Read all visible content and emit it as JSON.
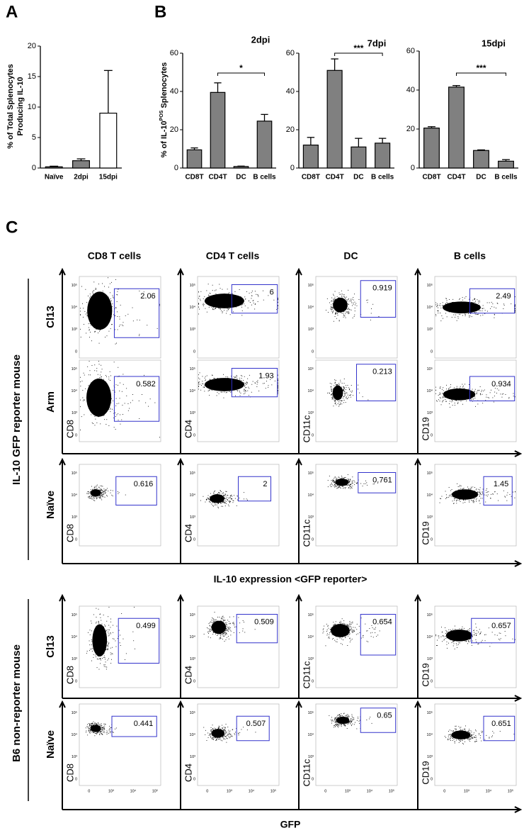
{
  "panels": {
    "a": "A",
    "b": "B",
    "c": "C"
  },
  "chart_data": [
    {
      "type": "bar",
      "ylabel": [
        "% of Total Splenocytes",
        "Producing IL-10"
      ],
      "categories": [
        "Naïve",
        "2dpi",
        "15dpi"
      ],
      "values": [
        0.2,
        1.2,
        9
      ],
      "errors": [
        0.1,
        0.3,
        7
      ],
      "colors": [
        "#808080",
        "#808080",
        "#ffffff"
      ],
      "ylim": [
        0,
        20
      ],
      "yticks": [
        0,
        5,
        10,
        15,
        20
      ]
    },
    {
      "type": "bar",
      "title": "2dpi",
      "ylabel": {
        "text": "% of IL-10",
        "sup": "POS",
        "rest": "Splenocytes"
      },
      "categories": [
        "CD8T",
        "CD4T",
        "DC",
        "B cells"
      ],
      "values": [
        9.5,
        39.5,
        0.8,
        24.5
      ],
      "errors": [
        1,
        5,
        0.2,
        3.5
      ],
      "color": "#808080",
      "ylim": [
        0,
        60
      ],
      "yticks": [
        0,
        20,
        40,
        60
      ],
      "annotation": "*"
    },
    {
      "type": "bar",
      "title": "7dpi",
      "categories": [
        "CD8T",
        "CD4T",
        "DC",
        "B cells"
      ],
      "values": [
        12,
        51,
        11,
        13
      ],
      "errors": [
        4,
        6,
        4.5,
        2.5
      ],
      "color": "#808080",
      "ylim": [
        0,
        60
      ],
      "yticks": [
        0,
        20,
        40,
        60
      ],
      "annotation": "***"
    },
    {
      "type": "bar",
      "title": "15dpi",
      "categories": [
        "CD8T",
        "CD4T",
        "DC",
        "B cells"
      ],
      "values": [
        20.5,
        41.5,
        9,
        3.5
      ],
      "errors": [
        0.7,
        0.8,
        0.3,
        0.8
      ],
      "color": "#808080",
      "ylim": [
        0,
        60
      ],
      "yticks": [
        0,
        20,
        40,
        60
      ],
      "annotation": "***"
    }
  ],
  "flow": {
    "columns": [
      "CD8 T cells",
      "CD4 T cells",
      "DC",
      "B cells"
    ],
    "markers": [
      "CD8",
      "CD4",
      "CD11c",
      "CD19"
    ],
    "ticks": [
      "0",
      "10³",
      "10⁴",
      "10⁵"
    ],
    "groups": [
      {
        "label": "IL-10 GFP reporter mouse",
        "xlabel": "IL-10 expression <GFP reporter>",
        "rows": [
          {
            "name": "Cl13",
            "gates": [
              2.06,
              6,
              0.919,
              2.49
            ]
          },
          {
            "name": "Arm",
            "gates": [
              0.582,
              1.93,
              0.213,
              0.934
            ]
          },
          {
            "name": "Naïve",
            "gates": [
              0.616,
              2,
              0.761,
              1.45
            ]
          }
        ]
      },
      {
        "label": "B6 non-reporter mouse",
        "xlabel": "GFP",
        "rows": [
          {
            "name": "Cl13",
            "gates": [
              0.499,
              0.509,
              0.654,
              0.657
            ]
          },
          {
            "name": "Naïve",
            "gates": [
              0.441,
              0.507,
              0.65,
              0.651
            ]
          }
        ]
      }
    ]
  }
}
